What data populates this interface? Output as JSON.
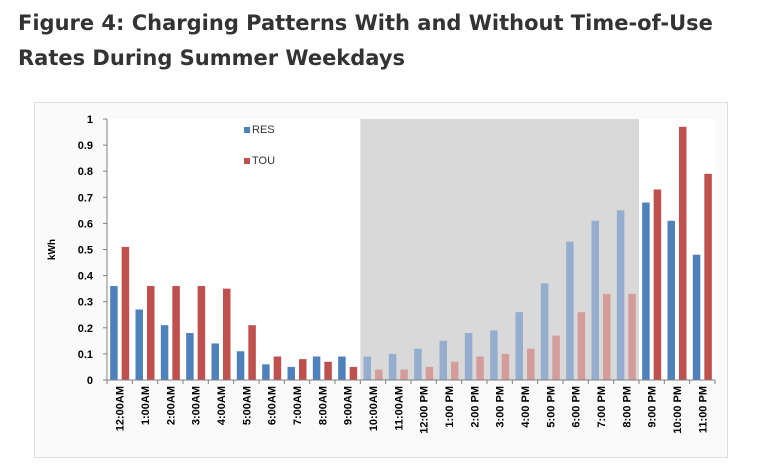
{
  "figure": {
    "title": "Figure 4: Charging Patterns With and Without Time-of-Use Rates During Summer Weekdays"
  },
  "chart_data": {
    "type": "bar",
    "title": "Figure 4: Charging Patterns With and Without Time-of-Use Rates During Summer Weekdays",
    "ylabel": "kWh",
    "xlabel": "",
    "ylim": [
      0,
      1
    ],
    "yticks": [
      "0",
      "0.1",
      "0.2",
      "0.3",
      "0.4",
      "0.5",
      "0.6",
      "0.7",
      "0.8",
      "0.9",
      "1"
    ],
    "grid": false,
    "legend_position": "top-left",
    "shaded_region": {
      "from": "10:00AM",
      "to": "8:00 PM",
      "color": "#d9d9d9"
    },
    "categories": [
      "12:00AM",
      "1:00AM",
      "2:00AM",
      "3:00AM",
      "4:00AM",
      "5:00AM",
      "6:00AM",
      "7:00AM",
      "8:00AM",
      "9:00AM",
      "10:00AM",
      "11:00AM",
      "12:00 PM",
      "1:00 PM",
      "2:00 PM",
      "3:00 PM",
      "4:00 PM",
      "5:00 PM",
      "6:00 PM",
      "7:00 PM",
      "8:00 PM",
      "9:00 PM",
      "10:00 PM",
      "11:00 PM"
    ],
    "series": [
      {
        "name": "RES",
        "color": "#4f81bd",
        "faded_color": "#95aed0",
        "values": [
          0.36,
          0.27,
          0.21,
          0.18,
          0.14,
          0.11,
          0.06,
          0.05,
          0.09,
          0.09,
          0.09,
          0.1,
          0.12,
          0.15,
          0.18,
          0.19,
          0.26,
          0.37,
          0.53,
          0.61,
          0.65,
          0.68,
          0.61,
          0.48
        ]
      },
      {
        "name": "TOU",
        "color": "#c0504d",
        "faded_color": "#d49c9a",
        "values": [
          0.51,
          0.36,
          0.36,
          0.36,
          0.35,
          0.21,
          0.09,
          0.08,
          0.07,
          0.05,
          0.04,
          0.04,
          0.05,
          0.07,
          0.09,
          0.1,
          0.12,
          0.17,
          0.26,
          0.33,
          0.33,
          0.73,
          0.97,
          0.79
        ]
      }
    ]
  }
}
